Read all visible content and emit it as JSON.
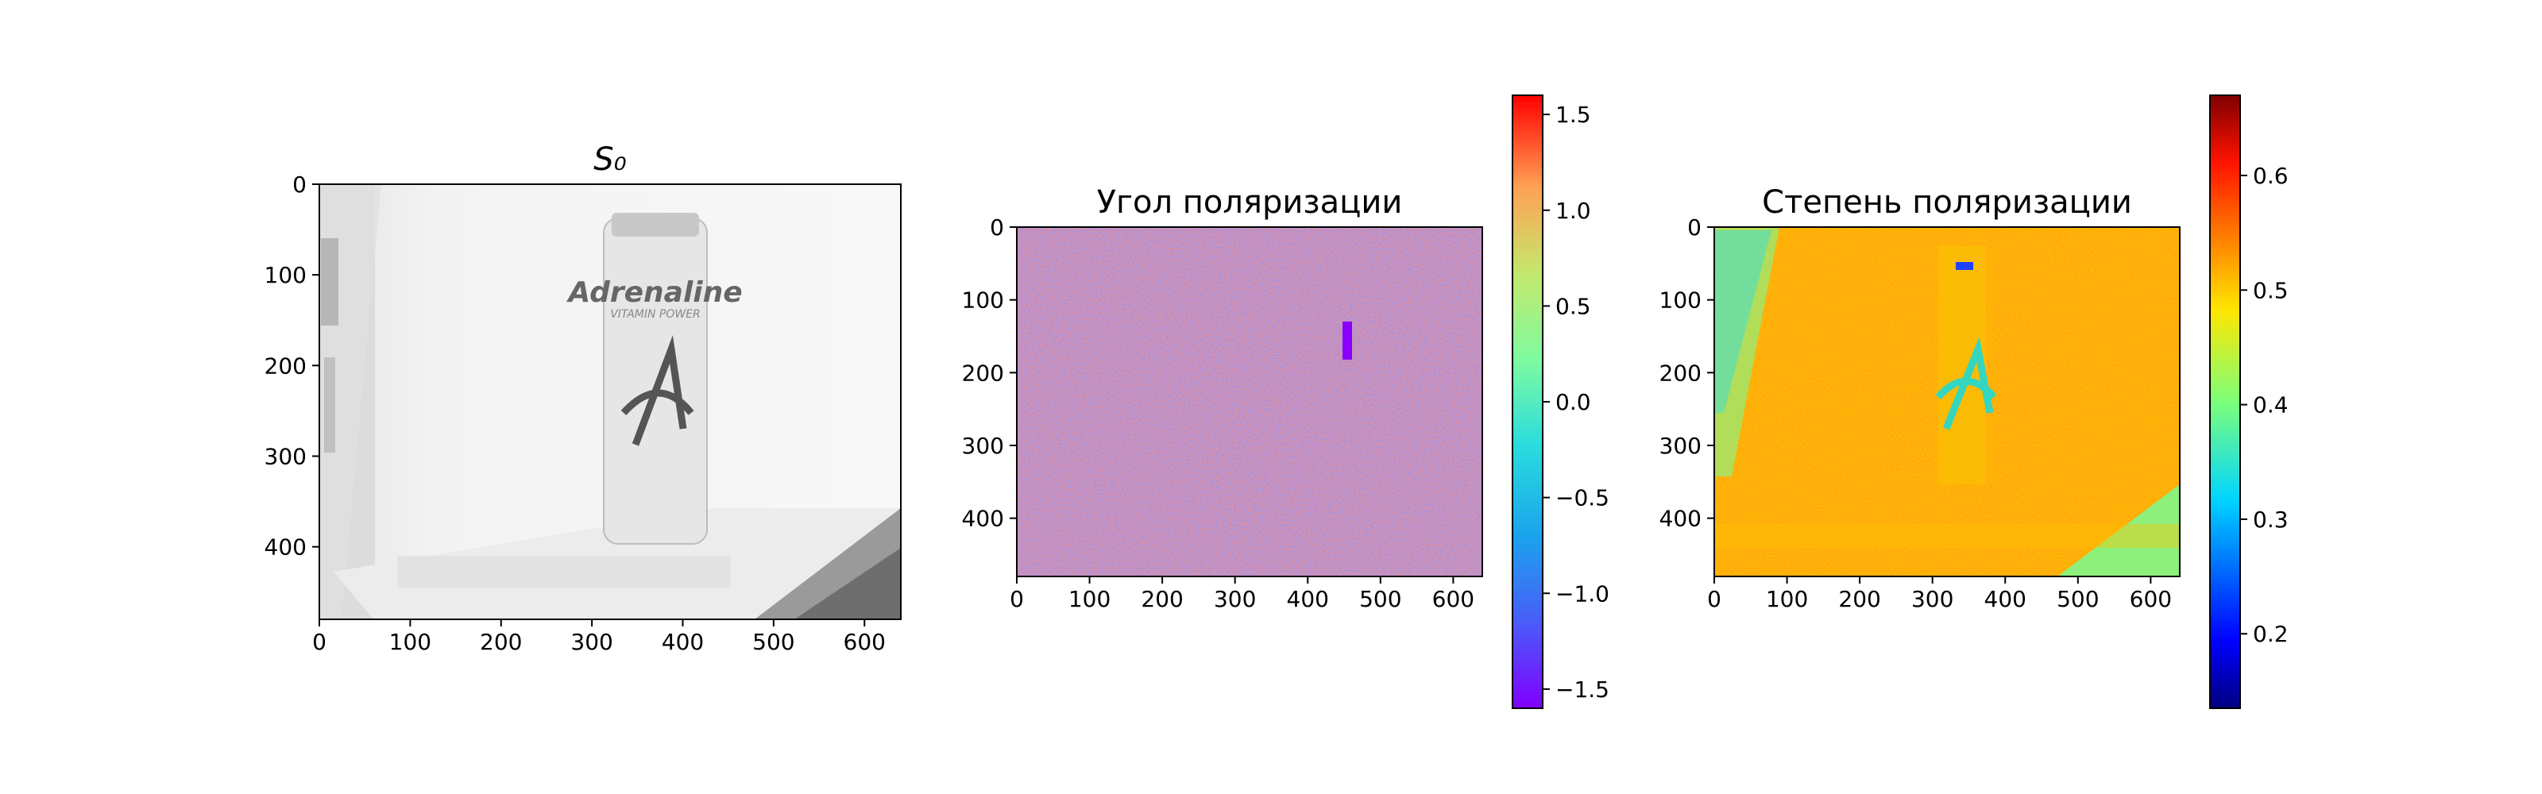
{
  "chart_data": [
    {
      "type": "heatmap",
      "title": "S₀",
      "colormap": "gray",
      "xlim": [
        0,
        640
      ],
      "ylim": [
        480,
        0
      ],
      "xticks": [
        0,
        100,
        200,
        300,
        400,
        500,
        600
      ],
      "yticks": [
        0,
        100,
        200,
        300,
        400
      ],
      "image_label": "Adrenaline",
      "image_sublabel": "VITAMIN POWER",
      "colorbar": null
    },
    {
      "type": "heatmap",
      "title": "Угол поляризации",
      "colormap": "rainbow",
      "xlim": [
        0,
        640
      ],
      "ylim": [
        480,
        0
      ],
      "xticks": [
        0,
        100,
        200,
        300,
        400,
        500,
        600
      ],
      "yticks": [
        0,
        100,
        200,
        300,
        400
      ],
      "colorbar": {
        "min": -1.6,
        "max": 1.6,
        "ticks": [
          -1.5,
          -1.0,
          -0.5,
          0.0,
          0.5,
          1.0,
          1.5
        ],
        "tick_labels": [
          "−1.5",
          "−1.0",
          "−0.5",
          "0.0",
          "0.5",
          "1.0",
          "1.5"
        ]
      }
    },
    {
      "type": "heatmap",
      "title": "Степень поляризации",
      "colormap": "jet",
      "xlim": [
        0,
        640
      ],
      "ylim": [
        480,
        0
      ],
      "xticks": [
        0,
        100,
        200,
        300,
        400,
        500,
        600
      ],
      "yticks": [
        0,
        100,
        200,
        300,
        400
      ],
      "colorbar": {
        "min": 0.135,
        "max": 0.67,
        "ticks": [
          0.2,
          0.3,
          0.4,
          0.5,
          0.6
        ],
        "tick_labels": [
          "0.2",
          "0.3",
          "0.4",
          "0.5",
          "0.6"
        ]
      }
    }
  ]
}
